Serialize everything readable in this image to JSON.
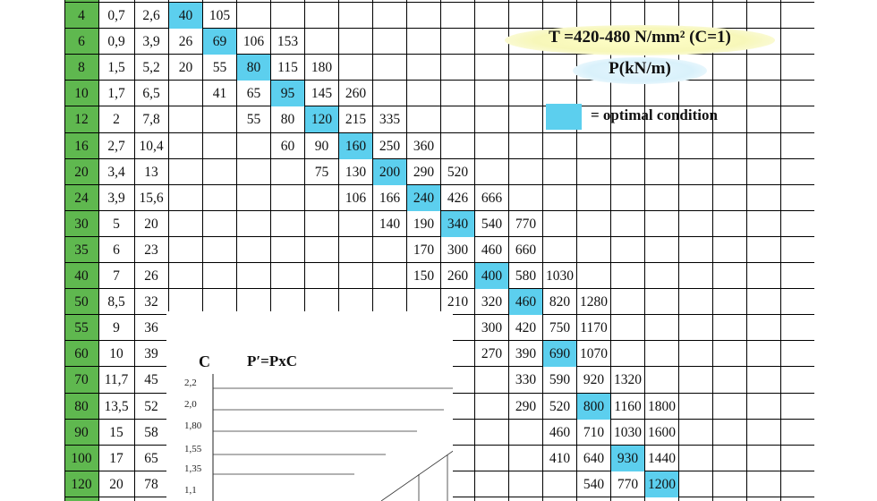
{
  "table": {
    "rows": [
      {
        "a": "4",
        "b": "0,7",
        "c": "2,6",
        "cells": [
          {
            "col": 0,
            "v": "40",
            "hi": true
          },
          {
            "col": 1,
            "v": "105"
          }
        ]
      },
      {
        "a": "6",
        "b": "0,9",
        "c": "3,9",
        "cells": [
          {
            "col": 0,
            "v": "26"
          },
          {
            "col": 1,
            "v": "69",
            "hi": true
          },
          {
            "col": 2,
            "v": "106"
          },
          {
            "col": 3,
            "v": "153"
          }
        ]
      },
      {
        "a": "8",
        "b": "1,5",
        "c": "5,2",
        "cells": [
          {
            "col": 0,
            "v": "20"
          },
          {
            "col": 1,
            "v": "55"
          },
          {
            "col": 2,
            "v": "80",
            "hi": true
          },
          {
            "col": 3,
            "v": "115"
          },
          {
            "col": 4,
            "v": "180"
          }
        ]
      },
      {
        "a": "10",
        "b": "1,7",
        "c": "6,5",
        "cells": [
          {
            "col": 1,
            "v": "41"
          },
          {
            "col": 2,
            "v": "65"
          },
          {
            "col": 3,
            "v": "95",
            "hi": true
          },
          {
            "col": 4,
            "v": "145"
          },
          {
            "col": 5,
            "v": "260"
          }
        ]
      },
      {
        "a": "12",
        "b": "2",
        "c": "7,8",
        "cells": [
          {
            "col": 2,
            "v": "55"
          },
          {
            "col": 3,
            "v": "80"
          },
          {
            "col": 4,
            "v": "120",
            "hi": true
          },
          {
            "col": 5,
            "v": "215"
          },
          {
            "col": 6,
            "v": "335"
          }
        ]
      },
      {
        "a": "16",
        "b": "2,7",
        "c": "10,4",
        "cells": [
          {
            "col": 3,
            "v": "60"
          },
          {
            "col": 4,
            "v": "90"
          },
          {
            "col": 5,
            "v": "160",
            "hi": true
          },
          {
            "col": 6,
            "v": "250"
          },
          {
            "col": 7,
            "v": "360"
          }
        ]
      },
      {
        "a": "20",
        "b": "3,4",
        "c": "13",
        "cells": [
          {
            "col": 4,
            "v": "75"
          },
          {
            "col": 5,
            "v": "130"
          },
          {
            "col": 6,
            "v": "200",
            "hi": true
          },
          {
            "col": 7,
            "v": "290"
          },
          {
            "col": 8,
            "v": "520"
          }
        ]
      },
      {
        "a": "24",
        "b": "3,9",
        "c": "15,6",
        "cells": [
          {
            "col": 5,
            "v": "106"
          },
          {
            "col": 6,
            "v": "166"
          },
          {
            "col": 7,
            "v": "240",
            "hi": true
          },
          {
            "col": 8,
            "v": "426"
          },
          {
            "col": 9,
            "v": "666"
          }
        ]
      },
      {
        "a": "30",
        "b": "5",
        "c": "20",
        "cells": [
          {
            "col": 6,
            "v": "140"
          },
          {
            "col": 7,
            "v": "190"
          },
          {
            "col": 8,
            "v": "340",
            "hi": true
          },
          {
            "col": 9,
            "v": "540"
          },
          {
            "col": 10,
            "v": "770"
          }
        ]
      },
      {
        "a": "35",
        "b": "6",
        "c": "23",
        "cells": [
          {
            "col": 7,
            "v": "170"
          },
          {
            "col": 8,
            "v": "300"
          },
          {
            "col": 9,
            "v": "460"
          },
          {
            "col": 10,
            "v": "660"
          }
        ]
      },
      {
        "a": "40",
        "b": "7",
        "c": "26",
        "cells": [
          {
            "col": 7,
            "v": "150"
          },
          {
            "col": 8,
            "v": "260"
          },
          {
            "col": 9,
            "v": "400",
            "hi": true
          },
          {
            "col": 10,
            "v": "580"
          },
          {
            "col": 11,
            "v": "1030"
          }
        ]
      },
      {
        "a": "50",
        "b": "8,5",
        "c": "32",
        "cells": [
          {
            "col": 8,
            "v": "210"
          },
          {
            "col": 9,
            "v": "320"
          },
          {
            "col": 10,
            "v": "460",
            "hi": true
          },
          {
            "col": 11,
            "v": "820"
          },
          {
            "col": 12,
            "v": "1280"
          }
        ]
      },
      {
        "a": "55",
        "b": "9",
        "c": "36",
        "cells": [
          {
            "col": 9,
            "v": "300"
          },
          {
            "col": 10,
            "v": "420"
          },
          {
            "col": 11,
            "v": "750"
          },
          {
            "col": 12,
            "v": "1170"
          }
        ]
      },
      {
        "a": "60",
        "b": "10",
        "c": "39",
        "cells": [
          {
            "col": 9,
            "v": "270"
          },
          {
            "col": 10,
            "v": "390"
          },
          {
            "col": 11,
            "v": "690",
            "hi": true
          },
          {
            "col": 12,
            "v": "1070"
          }
        ]
      },
      {
        "a": "70",
        "b": "11,7",
        "c": "45",
        "cells": [
          {
            "col": 10,
            "v": "330"
          },
          {
            "col": 11,
            "v": "590"
          },
          {
            "col": 12,
            "v": "920"
          },
          {
            "col": 13,
            "v": "1320"
          }
        ]
      },
      {
        "a": "80",
        "b": "13,5",
        "c": "52",
        "cells": [
          {
            "col": 10,
            "v": "290"
          },
          {
            "col": 11,
            "v": "520"
          },
          {
            "col": 12,
            "v": "800",
            "hi": true
          },
          {
            "col": 13,
            "v": "1160"
          },
          {
            "col": 14,
            "v": "1800"
          }
        ]
      },
      {
        "a": "90",
        "b": "15",
        "c": "58",
        "cells": [
          {
            "col": 11,
            "v": "460"
          },
          {
            "col": 12,
            "v": "710"
          },
          {
            "col": 13,
            "v": "1030"
          },
          {
            "col": 14,
            "v": "1600"
          }
        ]
      },
      {
        "a": "100",
        "b": "17",
        "c": "65",
        "cells": [
          {
            "col": 11,
            "v": "410"
          },
          {
            "col": 12,
            "v": "640"
          },
          {
            "col": 13,
            "v": "930",
            "hi": true
          },
          {
            "col": 14,
            "v": "1440"
          }
        ]
      },
      {
        "a": "120",
        "b": "20",
        "c": "78",
        "cells": [
          {
            "col": 12,
            "v": "540"
          },
          {
            "col": 13,
            "v": "770"
          },
          {
            "col": 14,
            "v": "1200",
            "hi": true
          }
        ]
      }
    ]
  },
  "annotations": {
    "tension": "T =420-480 N/mm² (C=1)",
    "load": "P(kN/m)",
    "legend": "= optimal condition"
  },
  "chart": {
    "c_label": "C",
    "formula": "P′=PxC",
    "ticks": [
      "2,2",
      "2,0",
      "1,80",
      "1,55",
      "1,35",
      "1,1"
    ]
  },
  "colors": {
    "highlight": "#5ccfee",
    "green_column": "#5fb84f",
    "tension_pill": "#f7f7b9",
    "load_pill": "#d9f1fb"
  }
}
